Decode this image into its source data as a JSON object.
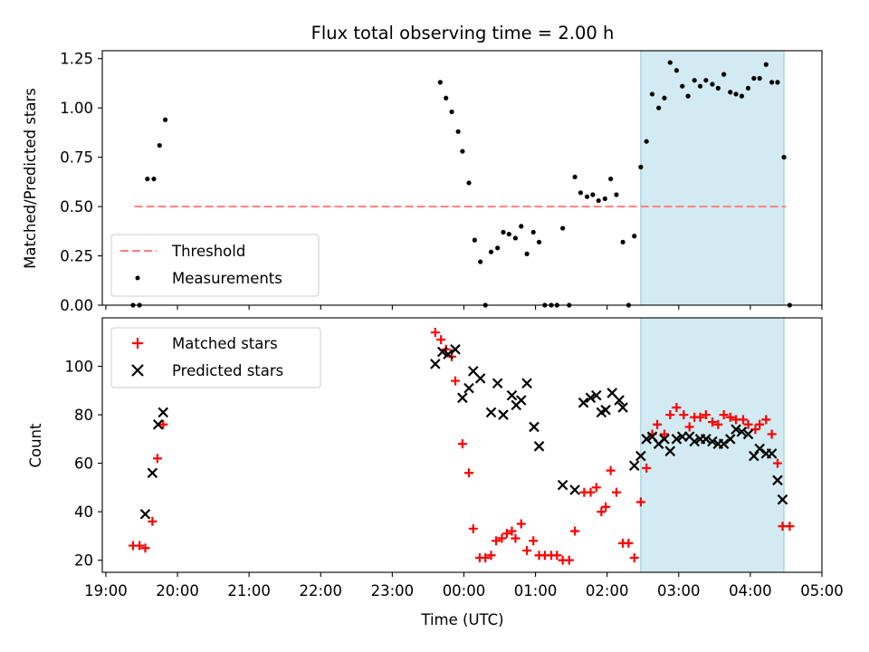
{
  "chart_data": [
    {
      "type": "scatter",
      "title": "Flux total observing time = 2.00 h",
      "xlabel": "",
      "ylabel": "Matched/Predicted stars",
      "ylim": [
        0,
        1.29
      ],
      "yticks": [
        "0.00",
        "0.25",
        "0.50",
        "0.75",
        "1.00",
        "1.25"
      ],
      "ytick_values": [
        0,
        0.25,
        0.5,
        0.75,
        1.0,
        1.25
      ],
      "shaded_x_range": [
        2.47,
        4.47
      ],
      "legend": "lower-left",
      "series": [
        {
          "name": "Threshold",
          "style": "dashed-line",
          "color": "#ff7f7f",
          "x": [
            19.4,
            4.5
          ],
          "y": [
            0.5,
            0.5
          ]
        },
        {
          "name": "Measurements",
          "style": "dot",
          "color": "#000000",
          "points": [
            [
              19.38,
              0.0
            ],
            [
              19.47,
              0.0
            ],
            [
              19.58,
              0.64
            ],
            [
              19.67,
              0.64
            ],
            [
              19.75,
              0.81
            ],
            [
              19.83,
              0.94
            ],
            [
              23.67,
              1.13
            ],
            [
              23.75,
              1.05
            ],
            [
              23.83,
              0.98
            ],
            [
              23.92,
              0.88
            ],
            [
              23.98,
              0.78
            ],
            [
              0.07,
              0.62
            ],
            [
              0.15,
              0.33
            ],
            [
              0.23,
              0.22
            ],
            [
              0.3,
              0.0
            ],
            [
              0.38,
              0.27
            ],
            [
              0.47,
              0.29
            ],
            [
              0.55,
              0.37
            ],
            [
              0.63,
              0.36
            ],
            [
              0.72,
              0.34
            ],
            [
              0.8,
              0.4
            ],
            [
              0.88,
              0.26
            ],
            [
              0.97,
              0.37
            ],
            [
              1.05,
              0.32
            ],
            [
              1.13,
              0.0
            ],
            [
              1.22,
              0.0
            ],
            [
              1.3,
              0.0
            ],
            [
              1.38,
              0.39
            ],
            [
              1.47,
              0.0
            ],
            [
              1.55,
              0.65
            ],
            [
              1.63,
              0.57
            ],
            [
              1.72,
              0.55
            ],
            [
              1.8,
              0.56
            ],
            [
              1.88,
              0.53
            ],
            [
              1.97,
              0.54
            ],
            [
              2.05,
              0.64
            ],
            [
              2.13,
              0.56
            ],
            [
              2.22,
              0.32
            ],
            [
              2.3,
              0.0
            ],
            [
              2.38,
              0.35
            ],
            [
              2.47,
              0.7
            ],
            [
              2.55,
              0.83
            ],
            [
              2.63,
              1.07
            ],
            [
              2.72,
              1.0
            ],
            [
              2.8,
              1.05
            ],
            [
              2.88,
              1.23
            ],
            [
              2.97,
              1.19
            ],
            [
              3.05,
              1.11
            ],
            [
              3.13,
              1.06
            ],
            [
              3.22,
              1.14
            ],
            [
              3.3,
              1.11
            ],
            [
              3.38,
              1.14
            ],
            [
              3.47,
              1.12
            ],
            [
              3.55,
              1.1
            ],
            [
              3.63,
              1.17
            ],
            [
              3.72,
              1.08
            ],
            [
              3.8,
              1.07
            ],
            [
              3.88,
              1.06
            ],
            [
              3.97,
              1.1
            ],
            [
              4.05,
              1.15
            ],
            [
              4.13,
              1.15
            ],
            [
              4.22,
              1.22
            ],
            [
              4.3,
              1.13
            ],
            [
              4.38,
              1.13
            ],
            [
              4.47,
              0.75
            ],
            [
              4.55,
              0.0
            ]
          ]
        }
      ]
    },
    {
      "type": "scatter",
      "title": "",
      "xlabel": "Time (UTC)",
      "ylabel": "Count",
      "ylim": [
        15,
        120
      ],
      "yticks": [
        "20",
        "40",
        "60",
        "80",
        "100"
      ],
      "ytick_values": [
        20,
        40,
        60,
        80,
        100
      ],
      "xticks": [
        "19:00",
        "20:00",
        "21:00",
        "22:00",
        "23:00",
        "00:00",
        "01:00",
        "02:00",
        "03:00",
        "04:00",
        "05:00"
      ],
      "xtick_values": [
        19,
        20,
        21,
        22,
        23,
        24,
        25,
        26,
        27,
        28,
        29
      ],
      "shaded_x_range": [
        2.47,
        4.47
      ],
      "legend": "top-left",
      "series": [
        {
          "name": "Matched stars",
          "style": "plus",
          "color": "#ff0000",
          "points": [
            [
              19.38,
              26
            ],
            [
              19.47,
              26
            ],
            [
              19.55,
              25
            ],
            [
              19.65,
              36
            ],
            [
              19.72,
              62
            ],
            [
              19.8,
              76
            ],
            [
              23.6,
              114
            ],
            [
              23.68,
              111
            ],
            [
              23.75,
              107
            ],
            [
              23.83,
              104
            ],
            [
              23.88,
              94
            ],
            [
              23.98,
              68
            ],
            [
              0.07,
              56
            ],
            [
              0.13,
              33
            ],
            [
              0.22,
              21
            ],
            [
              0.3,
              21
            ],
            [
              0.38,
              22
            ],
            [
              0.45,
              28
            ],
            [
              0.53,
              29
            ],
            [
              0.6,
              31
            ],
            [
              0.67,
              32
            ],
            [
              0.72,
              29
            ],
            [
              0.8,
              35
            ],
            [
              0.88,
              24
            ],
            [
              0.97,
              28
            ],
            [
              1.05,
              22
            ],
            [
              1.13,
              22
            ],
            [
              1.22,
              22
            ],
            [
              1.3,
              22
            ],
            [
              1.38,
              20
            ],
            [
              1.47,
              20
            ],
            [
              1.55,
              32
            ],
            [
              1.68,
              48
            ],
            [
              1.77,
              48
            ],
            [
              1.85,
              50
            ],
            [
              1.92,
              40
            ],
            [
              1.98,
              42
            ],
            [
              2.05,
              57
            ],
            [
              2.13,
              48
            ],
            [
              2.22,
              27
            ],
            [
              2.3,
              27
            ],
            [
              2.38,
              21
            ],
            [
              2.47,
              44
            ],
            [
              2.55,
              58
            ],
            [
              2.63,
              72
            ],
            [
              2.7,
              76
            ],
            [
              2.8,
              72
            ],
            [
              2.88,
              80
            ],
            [
              2.97,
              83
            ],
            [
              3.07,
              80
            ],
            [
              3.15,
              75
            ],
            [
              3.22,
              79
            ],
            [
              3.3,
              79
            ],
            [
              3.38,
              80
            ],
            [
              3.47,
              77
            ],
            [
              3.55,
              76
            ],
            [
              3.63,
              80
            ],
            [
              3.72,
              79
            ],
            [
              3.8,
              78
            ],
            [
              3.9,
              78
            ],
            [
              3.97,
              76
            ],
            [
              4.07,
              74
            ],
            [
              4.13,
              76
            ],
            [
              4.22,
              78
            ],
            [
              4.3,
              72
            ],
            [
              4.38,
              60
            ],
            [
              4.45,
              34
            ],
            [
              4.55,
              34
            ]
          ]
        },
        {
          "name": "Predicted stars",
          "style": "x",
          "color": "#000000",
          "points": [
            [
              19.55,
              39
            ],
            [
              19.65,
              56
            ],
            [
              19.73,
              76
            ],
            [
              19.8,
              81
            ],
            [
              23.6,
              101
            ],
            [
              23.7,
              106
            ],
            [
              23.78,
              105
            ],
            [
              23.88,
              107
            ],
            [
              23.98,
              87
            ],
            [
              0.07,
              91
            ],
            [
              0.13,
              98
            ],
            [
              0.23,
              95
            ],
            [
              0.38,
              81
            ],
            [
              0.47,
              93
            ],
            [
              0.55,
              80
            ],
            [
              0.67,
              88
            ],
            [
              0.73,
              84
            ],
            [
              0.8,
              86
            ],
            [
              0.88,
              93
            ],
            [
              0.98,
              75
            ],
            [
              1.05,
              67
            ],
            [
              1.38,
              51
            ],
            [
              1.55,
              49
            ],
            [
              1.67,
              85
            ],
            [
              1.77,
              87
            ],
            [
              1.85,
              88
            ],
            [
              1.92,
              81
            ],
            [
              1.98,
              82
            ],
            [
              2.07,
              89
            ],
            [
              2.17,
              86
            ],
            [
              2.22,
              83
            ],
            [
              2.38,
              59
            ],
            [
              2.47,
              63
            ],
            [
              2.55,
              70
            ],
            [
              2.63,
              71
            ],
            [
              2.72,
              68
            ],
            [
              2.8,
              70
            ],
            [
              2.88,
              65
            ],
            [
              2.97,
              70
            ],
            [
              3.05,
              71
            ],
            [
              3.15,
              71
            ],
            [
              3.22,
              69
            ],
            [
              3.3,
              70
            ],
            [
              3.38,
              70
            ],
            [
              3.47,
              69
            ],
            [
              3.55,
              68
            ],
            [
              3.63,
              68
            ],
            [
              3.72,
              70
            ],
            [
              3.8,
              74
            ],
            [
              3.88,
              73
            ],
            [
              3.97,
              72
            ],
            [
              4.05,
              63
            ],
            [
              4.13,
              66
            ],
            [
              4.22,
              64
            ],
            [
              4.3,
              64
            ],
            [
              4.38,
              53
            ],
            [
              4.45,
              45
            ]
          ]
        }
      ]
    }
  ]
}
